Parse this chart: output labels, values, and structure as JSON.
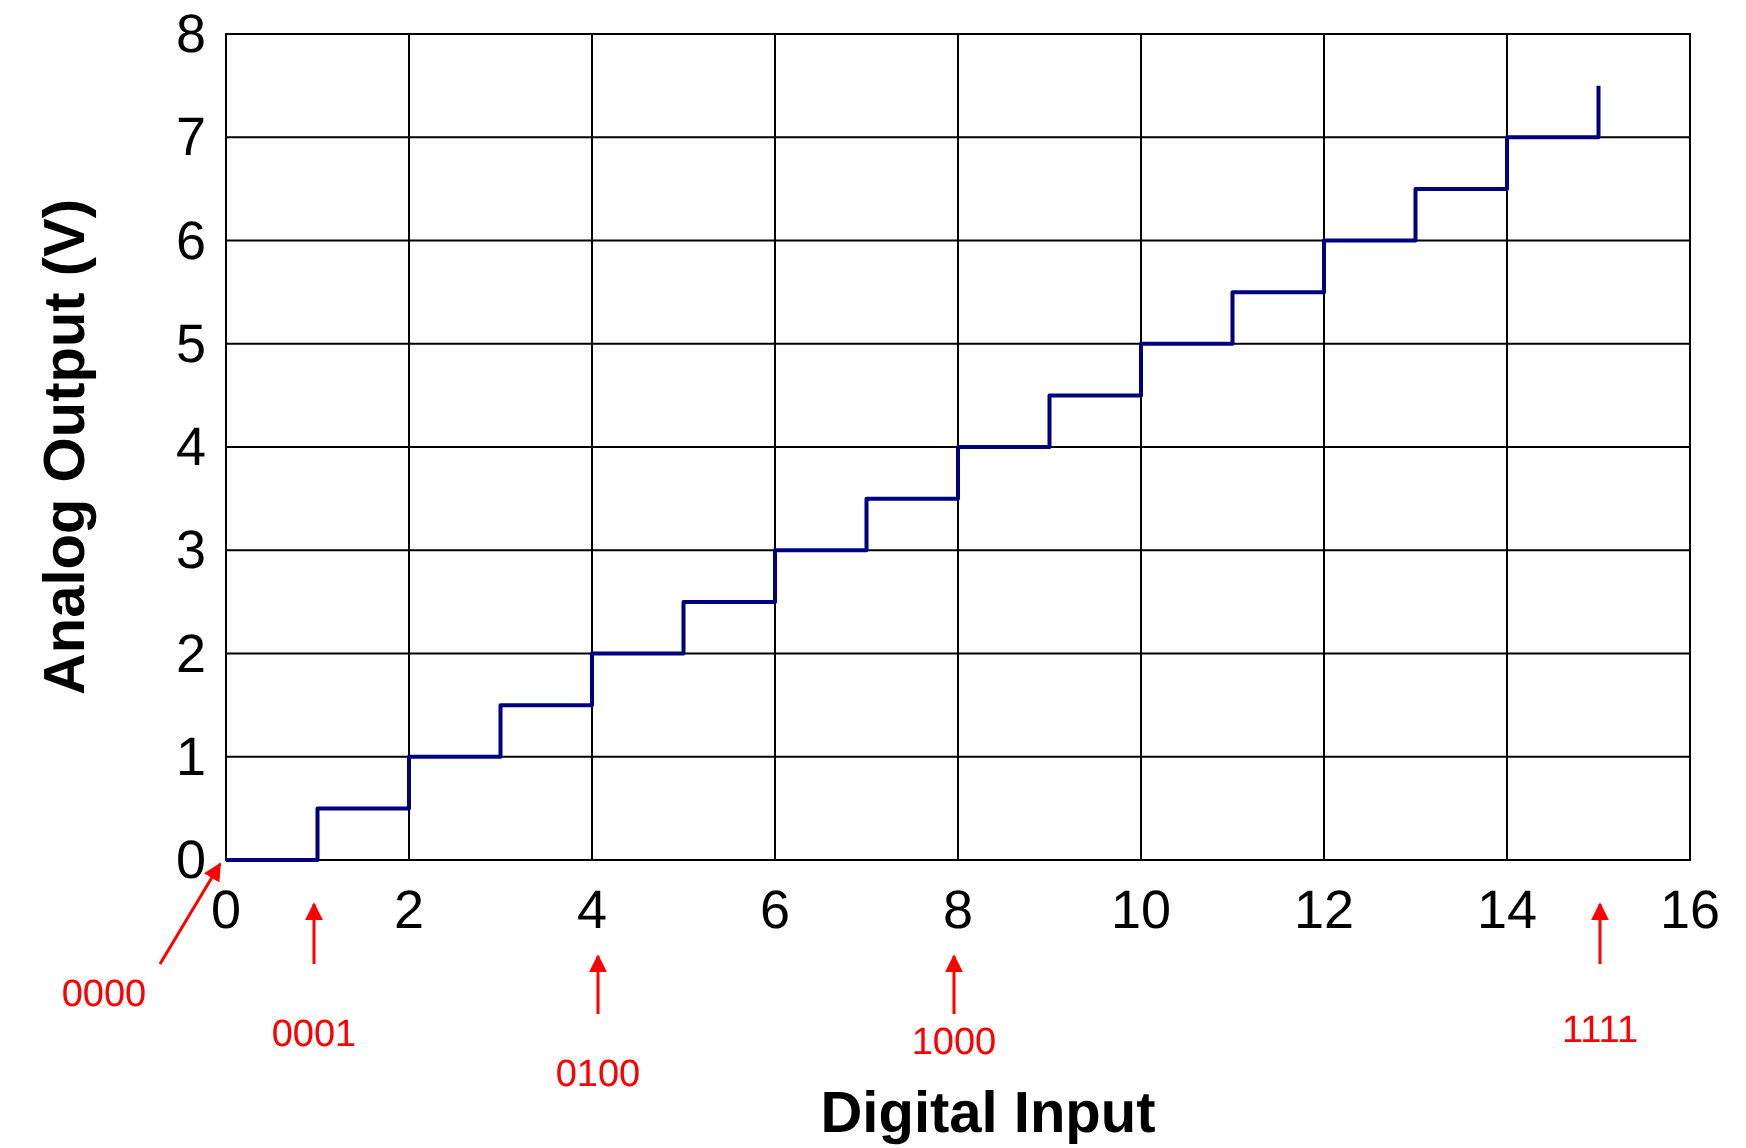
{
  "chart_data": {
    "type": "step",
    "xlabel": "Digital Input",
    "ylabel": "Analog Output (V)",
    "x": [
      0,
      1,
      2,
      3,
      4,
      5,
      6,
      7,
      8,
      9,
      10,
      11,
      12,
      13,
      14,
      15
    ],
    "series": [
      {
        "color": "#000080",
        "values": [
          0,
          0.5,
          1,
          1.5,
          2,
          2.5,
          3,
          3.5,
          4,
          4.5,
          5,
          5.5,
          6,
          6.5,
          7,
          7.5
        ]
      }
    ],
    "xlim": [
      0,
      16
    ],
    "xticks": [
      0,
      2,
      4,
      6,
      8,
      10,
      12,
      14,
      16
    ],
    "ylim": [
      0,
      8
    ],
    "yticks": [
      0,
      1,
      2,
      3,
      4,
      5,
      6,
      7,
      8
    ],
    "grid": true,
    "marker": "none",
    "line_style": "solid",
    "annotations": [
      "0000",
      "0001",
      "0100",
      "1000",
      "1111"
    ]
  }
}
